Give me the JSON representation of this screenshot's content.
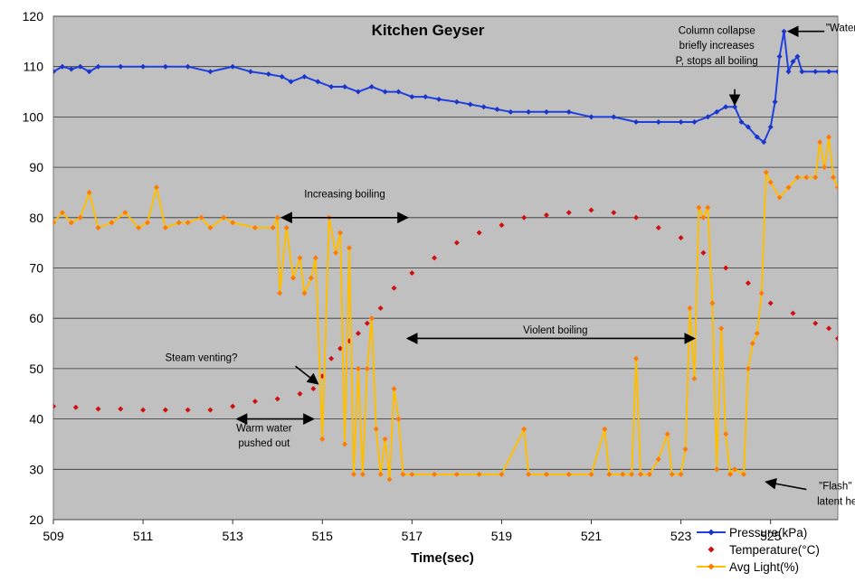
{
  "chart_data": {
    "type": "line",
    "title": "Kitchen Geyser",
    "xlabel": "Time(sec)",
    "ylabel": "",
    "xlim": [
      509,
      526.5
    ],
    "ylim": [
      20,
      120
    ],
    "x_ticks": [
      509,
      511,
      513,
      515,
      517,
      519,
      521,
      523,
      525
    ],
    "y_ticks": [
      20,
      30,
      40,
      50,
      60,
      70,
      80,
      90,
      100,
      110,
      120
    ],
    "grid": "horizontal",
    "legend": "bottom-right",
    "series": [
      {
        "name": "Pressure(kPa)",
        "color": "#1f3fe0",
        "marker": "diamond",
        "points": [
          [
            509,
            109
          ],
          [
            509.2,
            110
          ],
          [
            509.4,
            109.5
          ],
          [
            509.6,
            110
          ],
          [
            509.8,
            109
          ],
          [
            510,
            110
          ],
          [
            510.5,
            110
          ],
          [
            511,
            110
          ],
          [
            511.5,
            110
          ],
          [
            512,
            110
          ],
          [
            512.5,
            109
          ],
          [
            513,
            110
          ],
          [
            513.4,
            109
          ],
          [
            513.8,
            108.5
          ],
          [
            514.1,
            108
          ],
          [
            514.3,
            107
          ],
          [
            514.6,
            108
          ],
          [
            514.9,
            107
          ],
          [
            515.2,
            106
          ],
          [
            515.5,
            106
          ],
          [
            515.8,
            105
          ],
          [
            516.1,
            106
          ],
          [
            516.4,
            105
          ],
          [
            516.7,
            105
          ],
          [
            517,
            104
          ],
          [
            517.3,
            104
          ],
          [
            517.6,
            103.5
          ],
          [
            518,
            103
          ],
          [
            518.3,
            102.5
          ],
          [
            518.6,
            102
          ],
          [
            518.9,
            101.5
          ],
          [
            519.2,
            101
          ],
          [
            519.6,
            101
          ],
          [
            520,
            101
          ],
          [
            520.5,
            101
          ],
          [
            521,
            100
          ],
          [
            521.5,
            100
          ],
          [
            522,
            99
          ],
          [
            522.5,
            99
          ],
          [
            523,
            99
          ],
          [
            523.3,
            99
          ],
          [
            523.6,
            100
          ],
          [
            523.8,
            101
          ],
          [
            524,
            102
          ],
          [
            524.2,
            102
          ],
          [
            524.35,
            99
          ],
          [
            524.5,
            98
          ],
          [
            524.7,
            96
          ],
          [
            524.85,
            95
          ],
          [
            525,
            98
          ],
          [
            525.1,
            103
          ],
          [
            525.2,
            112
          ],
          [
            525.3,
            117
          ],
          [
            525.4,
            109
          ],
          [
            525.5,
            111
          ],
          [
            525.6,
            112
          ],
          [
            525.7,
            109
          ],
          [
            526,
            109
          ],
          [
            526.3,
            109
          ],
          [
            526.5,
            109
          ]
        ]
      },
      {
        "name": "Temperature(°C)",
        "color": "#e01818",
        "marker": "diamond",
        "points": [
          [
            509,
            42.5
          ],
          [
            509.5,
            42.3
          ],
          [
            510,
            42
          ],
          [
            510.5,
            42
          ],
          [
            511,
            41.8
          ],
          [
            511.5,
            41.8
          ],
          [
            512,
            41.8
          ],
          [
            512.5,
            41.8
          ],
          [
            513,
            42.5
          ],
          [
            513.5,
            43.5
          ],
          [
            514,
            44
          ],
          [
            514.5,
            45
          ],
          [
            514.8,
            46
          ],
          [
            515,
            48.5
          ],
          [
            515.2,
            52
          ],
          [
            515.4,
            54
          ],
          [
            515.6,
            55.5
          ],
          [
            515.8,
            57
          ],
          [
            516,
            59
          ],
          [
            516.3,
            62
          ],
          [
            516.6,
            66
          ],
          [
            517,
            69
          ],
          [
            517.5,
            72
          ],
          [
            518,
            75
          ],
          [
            518.5,
            77
          ],
          [
            519,
            78.5
          ],
          [
            519.5,
            80
          ],
          [
            520,
            80.5
          ],
          [
            520.5,
            81
          ],
          [
            521,
            81.5
          ],
          [
            521.5,
            81
          ],
          [
            522,
            80
          ],
          [
            522.5,
            78
          ],
          [
            523,
            76
          ],
          [
            523.5,
            73
          ],
          [
            524,
            70
          ],
          [
            524.5,
            67
          ],
          [
            525,
            63
          ],
          [
            525.5,
            61
          ],
          [
            526,
            59
          ],
          [
            526.3,
            58
          ],
          [
            526.5,
            56
          ]
        ]
      },
      {
        "name": "Avg Light(%)",
        "color": "#ffbe00",
        "marker": "diamond",
        "points": [
          [
            509,
            79
          ],
          [
            509.2,
            81
          ],
          [
            509.4,
            79
          ],
          [
            509.6,
            80
          ],
          [
            509.8,
            85
          ],
          [
            510,
            78
          ],
          [
            510.3,
            79
          ],
          [
            510.6,
            81
          ],
          [
            510.9,
            78
          ],
          [
            511.1,
            79
          ],
          [
            511.3,
            86
          ],
          [
            511.5,
            78
          ],
          [
            511.8,
            79
          ],
          [
            512,
            79
          ],
          [
            512.3,
            80
          ],
          [
            512.5,
            78
          ],
          [
            512.8,
            80
          ],
          [
            513,
            79
          ],
          [
            513.5,
            78
          ],
          [
            513.9,
            78
          ],
          [
            514,
            80
          ],
          [
            514.05,
            65
          ],
          [
            514.2,
            78
          ],
          [
            514.35,
            68
          ],
          [
            514.5,
            72
          ],
          [
            514.6,
            65
          ],
          [
            514.75,
            68
          ],
          [
            514.85,
            72
          ],
          [
            515,
            36
          ],
          [
            515.15,
            80
          ],
          [
            515.3,
            73
          ],
          [
            515.4,
            77
          ],
          [
            515.5,
            35
          ],
          [
            515.6,
            74
          ],
          [
            515.7,
            29
          ],
          [
            515.8,
            50
          ],
          [
            515.9,
            29
          ],
          [
            516,
            50
          ],
          [
            516.1,
            60
          ],
          [
            516.2,
            38
          ],
          [
            516.3,
            29
          ],
          [
            516.4,
            36
          ],
          [
            516.5,
            28
          ],
          [
            516.6,
            46
          ],
          [
            516.7,
            40
          ],
          [
            516.8,
            29
          ],
          [
            517,
            29
          ],
          [
            517.5,
            29
          ],
          [
            518,
            29
          ],
          [
            518.5,
            29
          ],
          [
            519,
            29
          ],
          [
            519.5,
            38
          ],
          [
            519.6,
            29
          ],
          [
            520,
            29
          ],
          [
            520.5,
            29
          ],
          [
            521,
            29
          ],
          [
            521.3,
            38
          ],
          [
            521.4,
            29
          ],
          [
            521.7,
            29
          ],
          [
            521.9,
            29
          ],
          [
            522,
            52
          ],
          [
            522.1,
            29
          ],
          [
            522.3,
            29
          ],
          [
            522.5,
            32
          ],
          [
            522.7,
            37
          ],
          [
            522.8,
            29
          ],
          [
            523,
            29
          ],
          [
            523.1,
            34
          ],
          [
            523.2,
            62
          ],
          [
            523.3,
            48
          ],
          [
            523.4,
            82
          ],
          [
            523.5,
            80
          ],
          [
            523.6,
            82
          ],
          [
            523.7,
            63
          ],
          [
            523.8,
            30
          ],
          [
            523.9,
            58
          ],
          [
            524,
            37
          ],
          [
            524.1,
            29
          ],
          [
            524.2,
            30
          ],
          [
            524.4,
            29
          ],
          [
            524.5,
            50
          ],
          [
            524.6,
            55
          ],
          [
            524.7,
            57
          ],
          [
            524.8,
            65
          ],
          [
            524.9,
            89
          ],
          [
            525,
            87
          ],
          [
            525.2,
            84
          ],
          [
            525.4,
            86
          ],
          [
            525.6,
            88
          ],
          [
            525.8,
            88
          ],
          [
            526,
            88
          ],
          [
            526.1,
            95
          ],
          [
            526.2,
            90
          ],
          [
            526.3,
            96
          ],
          [
            526.4,
            88
          ],
          [
            526.5,
            86
          ]
        ]
      }
    ],
    "annotations": [
      {
        "text": "Column collapse",
        "x": 523.8,
        "y": 116.5
      },
      {
        "text": "briefly increases",
        "x": 523.8,
        "y": 113.5
      },
      {
        "text": "P, stops all boiling",
        "x": 523.8,
        "y": 110.5
      },
      {
        "text": "\"Water Hammer\"",
        "x": 527.1,
        "y": 117
      },
      {
        "text": "Increasing boiling",
        "x": 515.5,
        "y": 84
      },
      {
        "text": "Violent boiling",
        "x": 520.2,
        "y": 57
      },
      {
        "text": "Steam venting?",
        "x": 512.3,
        "y": 51.5
      },
      {
        "text": "Warm water",
        "x": 513.7,
        "y": 37.5
      },
      {
        "text": "pushed out",
        "x": 513.7,
        "y": 34.5
      },
      {
        "text": "\"Flash\" due to",
        "x": 526.8,
        "y": 26
      },
      {
        "text": "latent heating?",
        "x": 526.8,
        "y": 23
      }
    ],
    "arrows": [
      {
        "from": [
          524.2,
          105.5
        ],
        "to": [
          524.2,
          102.5
        ],
        "heads": "end"
      },
      {
        "from": [
          526.2,
          117
        ],
        "to": [
          525.4,
          117
        ],
        "heads": "end"
      },
      {
        "from": [
          514.1,
          80
        ],
        "to": [
          516.9,
          80
        ],
        "heads": "both"
      },
      {
        "from": [
          516.9,
          56
        ],
        "to": [
          523.3,
          56
        ],
        "heads": "both"
      },
      {
        "from": [
          514.4,
          50.5
        ],
        "to": [
          514.9,
          47
        ],
        "heads": "end"
      },
      {
        "from": [
          513.1,
          40
        ],
        "to": [
          514.8,
          40
        ],
        "heads": "both"
      },
      {
        "from": [
          525.8,
          26
        ],
        "to": [
          524.9,
          27.5
        ],
        "heads": "end"
      }
    ]
  }
}
